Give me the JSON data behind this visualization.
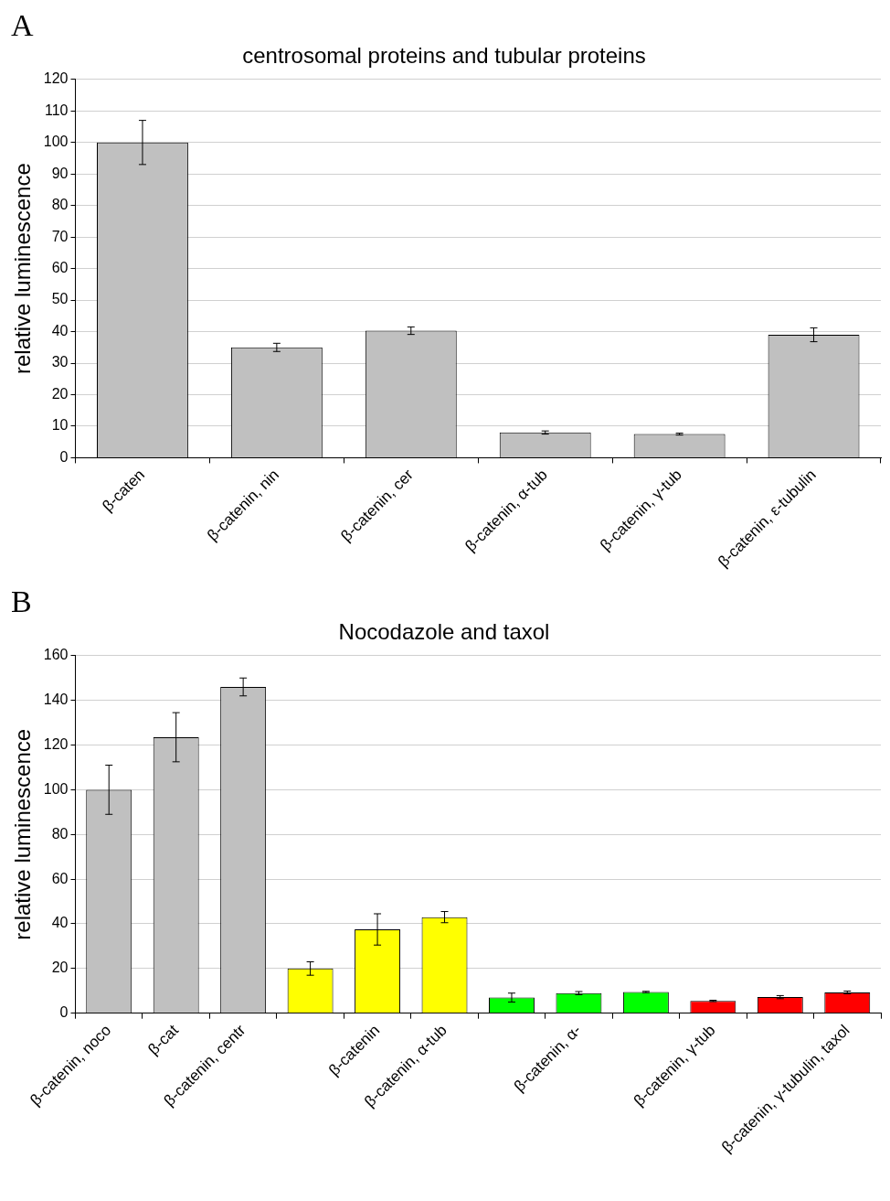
{
  "chart_data": [
    {
      "type": "bar",
      "title": "centrosomal proteins and tubular proteins",
      "ylabel": "relative luminescence",
      "annotations": [
        "A"
      ],
      "categories": [
        "β-caten",
        "β-catenin, nin",
        "β-catenin, cer",
        "β-catenin, α-tub",
        "β-catenin, γ-tub",
        "β-catenin, ε-tubulin"
      ],
      "values": [
        100,
        35,
        40.3,
        8,
        7.5,
        39
      ],
      "errors": [
        7,
        1.3,
        1.2,
        0.5,
        0.3,
        2.2
      ],
      "color": "#c0c0c0",
      "ylim": [
        0,
        120
      ],
      "yticks": [
        0,
        10,
        20,
        30,
        40,
        50,
        60,
        70,
        80,
        90,
        100,
        110,
        120
      ],
      "grid": "y"
    },
    {
      "type": "bar",
      "title": "Nocodazole and taxol",
      "ylabel": "relative luminescence",
      "annotations": [
        "B"
      ],
      "categories": [
        "β-catenin, noco",
        "β-cat",
        "β-catenin, centr",
        null,
        "β-catenin",
        "β-catenin, α-tub",
        null,
        "β-catenin, α-",
        null,
        "β-catenin, γ-tub",
        null,
        "β-catenin, γ-tubulin, taxol"
      ],
      "values": [
        100,
        123.5,
        146,
        20,
        37.5,
        43,
        7,
        9,
        9.5,
        5.5,
        7.2,
        9.3
      ],
      "errors": [
        11,
        11,
        4,
        3,
        7,
        2.5,
        2,
        0.7,
        0.3,
        0.3,
        0.7,
        0.6
      ],
      "colors": [
        "#c0c0c0",
        "#c0c0c0",
        "#c0c0c0",
        "#ffff00",
        "#ffff00",
        "#ffff00",
        "#00ff00",
        "#00ff00",
        "#00ff00",
        "#ff0000",
        "#ff0000",
        "#ff0000"
      ],
      "ylim": [
        0,
        160
      ],
      "yticks": [
        0,
        20,
        40,
        60,
        80,
        100,
        120,
        140,
        160
      ],
      "grid": "y"
    }
  ]
}
